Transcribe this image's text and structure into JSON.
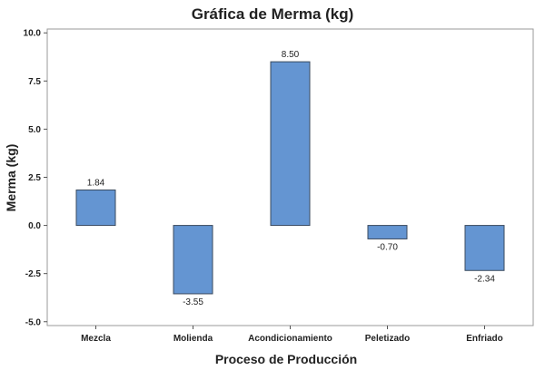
{
  "chart_data": {
    "type": "bar",
    "title": "Gráfica de Merma (kg)",
    "xlabel": "Proceso de Producción",
    "ylabel": "Merma (kg)",
    "categories": [
      "Mezcla",
      "Molienda",
      "Acondicionamiento",
      "Peletizado",
      "Enfriado"
    ],
    "values": [
      1.84,
      -3.55,
      8.5,
      -0.7,
      -2.34
    ],
    "data_labels": [
      "1.84",
      "-3.55",
      "8.50",
      "-0.70",
      "-2.34"
    ],
    "ylim": [
      -5.2,
      10.2
    ],
    "yticks": [
      -5.0,
      -2.5,
      0.0,
      2.5,
      5.0,
      7.5,
      10.0
    ],
    "ytick_labels": [
      "-5.0",
      "-2.5",
      "0.0",
      "2.5",
      "5.0",
      "7.5",
      "10.0"
    ],
    "grid": false,
    "bar_color": "#6495d2",
    "bar_edge_color": "#3a4a5e"
  }
}
